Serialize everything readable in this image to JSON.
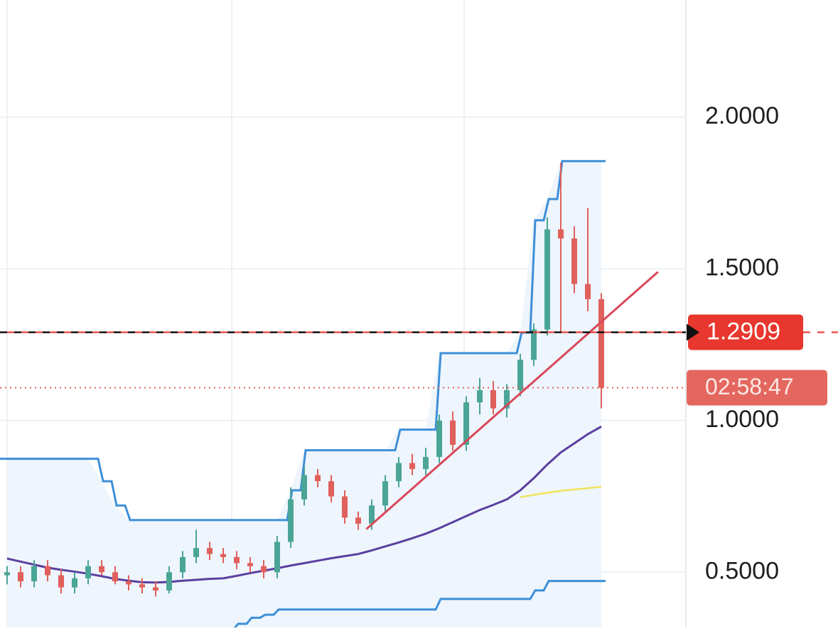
{
  "chart_data": {
    "type": "candlestick",
    "ylim": [
      0.318,
      2.386
    ],
    "yticks": [
      {
        "value": 2,
        "label": "2.0000"
      },
      {
        "value": 1.5,
        "label": "1.5000"
      },
      {
        "value": 1,
        "label": "1.0000"
      },
      {
        "value": 0.5,
        "label": "0.5000"
      }
    ],
    "grid": true,
    "up_color": "#4aa596",
    "down_color": "#e0605c",
    "open": [
      0.49,
      0.5,
      0.47,
      0.52,
      0.49,
      0.45,
      0.48,
      0.52,
      0.5,
      0.47,
      0.46,
      0.45,
      0.44,
      0.5,
      0.55,
      0.58,
      0.56,
      0.55,
      0.53,
      0.52,
      0.5,
      0.6,
      0.74,
      0.82,
      0.8,
      0.75,
      0.68,
      0.66,
      0.72,
      0.8,
      0.86,
      0.84,
      0.88,
      1.0,
      0.92,
      1.06,
      1.1,
      1.04,
      1.1,
      1.2,
      1.3,
      1.63,
      1.6,
      1.45,
      1.4
    ],
    "high": [
      0.52,
      0.52,
      0.54,
      0.54,
      0.51,
      0.5,
      0.54,
      0.54,
      0.52,
      0.49,
      0.48,
      0.47,
      0.52,
      0.57,
      0.64,
      0.6,
      0.58,
      0.57,
      0.55,
      0.54,
      0.62,
      0.78,
      0.85,
      0.84,
      0.82,
      0.77,
      0.7,
      0.74,
      0.82,
      0.88,
      0.89,
      0.91,
      1.02,
      1.03,
      1.08,
      1.14,
      1.13,
      1.12,
      1.22,
      1.32,
      1.67,
      1.85,
      1.64,
      1.7,
      1.42
    ],
    "low": [
      0.46,
      0.45,
      0.45,
      0.47,
      0.43,
      0.43,
      0.46,
      0.49,
      0.46,
      0.44,
      0.43,
      0.42,
      0.43,
      0.48,
      0.53,
      0.54,
      0.53,
      0.51,
      0.5,
      0.48,
      0.48,
      0.58,
      0.72,
      0.78,
      0.73,
      0.66,
      0.64,
      0.64,
      0.7,
      0.78,
      0.82,
      0.82,
      0.86,
      0.9,
      0.9,
      1.02,
      1.02,
      1.01,
      1.08,
      1.18,
      1.28,
      1.29,
      1.42,
      1.36,
      1.04
    ],
    "close": [
      0.5,
      0.47,
      0.52,
      0.49,
      0.45,
      0.48,
      0.52,
      0.5,
      0.47,
      0.46,
      0.45,
      0.44,
      0.5,
      0.55,
      0.58,
      0.56,
      0.55,
      0.53,
      0.52,
      0.5,
      0.6,
      0.74,
      0.82,
      0.8,
      0.75,
      0.68,
      0.66,
      0.72,
      0.8,
      0.86,
      0.84,
      0.88,
      1.0,
      0.92,
      1.06,
      1.1,
      1.04,
      1.1,
      1.2,
      1.3,
      1.63,
      1.6,
      1.45,
      1.4,
      1.108
    ],
    "upper_band": {
      "color": "#3d8fd8",
      "values": [
        0.874,
        0.874,
        0.874,
        0.874,
        0.874,
        0.874,
        0.874,
        0.8,
        0.72,
        0.672,
        0.672,
        0.672,
        0.672,
        0.672,
        0.672,
        0.672,
        0.672,
        0.672,
        0.672,
        0.672,
        0.672,
        0.77,
        0.902,
        0.902,
        0.902,
        0.902,
        0.902,
        0.902,
        0.902,
        0.97,
        0.97,
        0.97,
        1.222,
        1.222,
        1.222,
        1.222,
        1.222,
        1.222,
        1.29,
        1.66,
        1.73,
        1.855,
        1.855,
        1.855,
        1.855
      ]
    },
    "lower_band": {
      "color": "#3d8fd8",
      "values": [
        null,
        null,
        null,
        null,
        null,
        null,
        null,
        null,
        null,
        null,
        null,
        null,
        null,
        null,
        null,
        null,
        0.31,
        0.33,
        0.35,
        0.36,
        0.377,
        0.377,
        0.377,
        0.377,
        0.377,
        0.377,
        0.377,
        0.377,
        0.377,
        0.377,
        0.377,
        0.377,
        0.412,
        0.412,
        0.412,
        0.412,
        0.412,
        0.412,
        0.412,
        0.44,
        0.471,
        0.471,
        0.471,
        0.471,
        0.471
      ]
    },
    "ma": {
      "color": "#5b3fa0",
      "values": [
        0.545,
        0.535,
        0.525,
        0.515,
        0.508,
        0.502,
        0.495,
        0.487,
        0.478,
        0.472,
        0.467,
        0.466,
        0.468,
        0.472,
        0.475,
        0.478,
        0.48,
        0.488,
        0.497,
        0.505,
        0.513,
        0.522,
        0.53,
        0.538,
        0.546,
        0.553,
        0.56,
        0.572,
        0.585,
        0.598,
        0.612,
        0.627,
        0.645,
        0.665,
        0.685,
        0.705,
        0.722,
        0.74,
        0.77,
        0.81,
        0.855,
        0.895,
        0.925,
        0.955,
        0.98
      ]
    },
    "ma_long": {
      "color": "#f0e35a",
      "values": [
        null,
        null,
        null,
        null,
        null,
        null,
        null,
        null,
        null,
        null,
        null,
        null,
        null,
        null,
        null,
        null,
        null,
        null,
        null,
        null,
        null,
        null,
        null,
        null,
        null,
        null,
        null,
        null,
        null,
        null,
        null,
        null,
        null,
        null,
        null,
        null,
        null,
        null,
        0.747,
        0.755,
        0.762,
        0.768,
        0.773,
        0.777,
        0.782
      ]
    },
    "trendline": {
      "color": "#d9485a",
      "x": [
        26.6,
        48.2
      ],
      "values": [
        0.642,
        1.49
      ]
    },
    "price_line": 1.2909,
    "price_label_color": "#e8372e",
    "countdown": "02:58:47",
    "countdown_color": "#e4675f"
  }
}
